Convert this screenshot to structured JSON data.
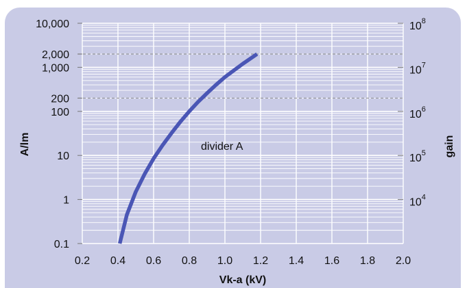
{
  "chart_data": {
    "type": "line",
    "xlabel": "Vk-a (kV)",
    "ylabel": "A/lm",
    "y2label": "gain",
    "xlim": [
      0.2,
      2.0
    ],
    "ylim_log": [
      0.1,
      10000
    ],
    "y_scale": "log",
    "x_ticks": [
      "0.2",
      "0.4",
      "0.6",
      "0.8",
      "1.0",
      "1.2",
      "1.4",
      "1.6",
      "1.8",
      "2.0"
    ],
    "y_ticks": [
      {
        "value": 10000,
        "label": "10,000"
      },
      {
        "value": 2000,
        "label": "2,000"
      },
      {
        "value": 1000,
        "label": "1,000"
      },
      {
        "value": 200,
        "label": "200"
      },
      {
        "value": 100,
        "label": "100"
      },
      {
        "value": 10,
        "label": "10"
      },
      {
        "value": 1,
        "label": "1"
      },
      {
        "value": 0.1,
        "label": "0.1"
      }
    ],
    "y2_ticks": [
      {
        "value": 10000,
        "base": "10",
        "exp": "4"
      },
      {
        "value": 100000,
        "base": "10",
        "exp": "5"
      },
      {
        "value": 1000000,
        "base": "10",
        "exp": "6"
      },
      {
        "value": 10000000,
        "base": "10",
        "exp": "7"
      },
      {
        "value": 100000000,
        "base": "10",
        "exp": "8"
      }
    ],
    "reference_lines": [
      2000,
      200
    ],
    "annotation": "divider A",
    "grid": true,
    "colors": {
      "curve": "#4a56b5",
      "background": "#c9cbe6",
      "grid": "#ffffff",
      "dashed": "#999999"
    },
    "series": [
      {
        "x": [
          0.41,
          0.45,
          0.5,
          0.55,
          0.6,
          0.65,
          0.7,
          0.75,
          0.8,
          0.85,
          0.9,
          0.95,
          1.0,
          1.05,
          1.1,
          1.15,
          1.18
        ],
        "y": [
          0.1,
          0.45,
          1.5,
          3.8,
          8.5,
          17,
          32,
          58,
          100,
          165,
          260,
          400,
          600,
          850,
          1200,
          1650,
          2000
        ]
      }
    ]
  }
}
